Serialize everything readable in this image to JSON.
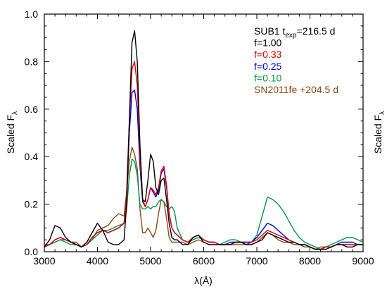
{
  "chart_data": {
    "type": "line",
    "xlabel": "λ(Å)",
    "ylabel": "Scaled F",
    "ylabel_sub": "λ",
    "xlim": [
      3000,
      9000
    ],
    "ylim": [
      0.0,
      1.0
    ],
    "xticks": [
      3000,
      4000,
      5000,
      6000,
      7000,
      8000,
      9000
    ],
    "yticks": [
      0.0,
      0.2,
      0.4,
      0.6,
      0.8,
      1.0
    ],
    "ytick_labels": [
      "0.0",
      "0.2",
      "0.4",
      "0.6",
      "0.8",
      "1.0"
    ],
    "legend": {
      "placement": "top-right",
      "header": {
        "main": "SUB1 t",
        "sub": "exp",
        "rest": "=216.5 d"
      }
    },
    "series": [
      {
        "name": "f=1.00",
        "color": "#000000",
        "x": [
          3000,
          3100,
          3200,
          3300,
          3400,
          3500,
          3600,
          3700,
          3800,
          3900,
          4000,
          4100,
          4200,
          4300,
          4400,
          4500,
          4550,
          4600,
          4650,
          4700,
          4750,
          4800,
          4850,
          4900,
          4950,
          5000,
          5050,
          5100,
          5150,
          5200,
          5250,
          5300,
          5350,
          5400,
          5450,
          5500,
          5600,
          5700,
          5800,
          5900,
          6000,
          6100,
          6200,
          6300,
          6400,
          6500,
          6600,
          6700,
          6800,
          6900,
          7000,
          7100,
          7200,
          7300,
          7400,
          7500,
          7600,
          7700,
          7800,
          7900,
          8000,
          8100,
          8200,
          8300,
          8400,
          8500,
          8600,
          8700,
          8800,
          8900,
          9000
        ],
        "y": [
          0.02,
          0.05,
          0.11,
          0.1,
          0.06,
          0.04,
          0.03,
          0.02,
          0.04,
          0.08,
          0.12,
          0.09,
          0.04,
          0.03,
          0.03,
          0.05,
          0.2,
          0.55,
          0.88,
          0.93,
          0.8,
          0.45,
          0.22,
          0.21,
          0.3,
          0.41,
          0.38,
          0.27,
          0.24,
          0.3,
          0.31,
          0.22,
          0.12,
          0.06,
          0.05,
          0.05,
          0.03,
          0.03,
          0.06,
          0.07,
          0.04,
          0.03,
          0.03,
          0.03,
          0.03,
          0.03,
          0.04,
          0.04,
          0.03,
          0.03,
          0.04,
          0.05,
          0.08,
          0.07,
          0.06,
          0.05,
          0.04,
          0.04,
          0.03,
          0.03,
          0.02,
          0.01,
          0.01,
          0.01,
          0.02,
          0.03,
          0.03,
          0.02,
          0.02,
          0.03,
          0.03
        ]
      },
      {
        "name": "f=0.33",
        "color": "#e00000",
        "x": [
          3000,
          3100,
          3200,
          3300,
          3400,
          3500,
          3600,
          3700,
          3800,
          3900,
          4000,
          4100,
          4200,
          4300,
          4400,
          4500,
          4550,
          4600,
          4650,
          4700,
          4750,
          4800,
          4850,
          4900,
          4950,
          5000,
          5050,
          5100,
          5150,
          5200,
          5250,
          5300,
          5350,
          5400,
          5450,
          5500,
          5600,
          5700,
          5800,
          5900,
          6000,
          6100,
          6200,
          6300,
          6400,
          6500,
          6600,
          6700,
          6800,
          6900,
          7000,
          7100,
          7200,
          7300,
          7400,
          7500,
          7600,
          7700,
          7800,
          7900,
          8000,
          8100,
          8200,
          8300,
          8400,
          8500,
          8600,
          8700,
          8800,
          8900,
          9000
        ],
        "y": [
          0.02,
          0.03,
          0.05,
          0.06,
          0.05,
          0.04,
          0.03,
          0.02,
          0.03,
          0.06,
          0.08,
          0.09,
          0.08,
          0.09,
          0.1,
          0.12,
          0.25,
          0.55,
          0.77,
          0.8,
          0.7,
          0.4,
          0.22,
          0.19,
          0.22,
          0.27,
          0.26,
          0.24,
          0.27,
          0.34,
          0.36,
          0.28,
          0.16,
          0.1,
          0.08,
          0.07,
          0.05,
          0.04,
          0.06,
          0.07,
          0.05,
          0.04,
          0.04,
          0.03,
          0.03,
          0.03,
          0.04,
          0.04,
          0.03,
          0.04,
          0.05,
          0.07,
          0.09,
          0.08,
          0.07,
          0.06,
          0.05,
          0.04,
          0.03,
          0.03,
          0.02,
          0.01,
          0.01,
          0.02,
          0.02,
          0.03,
          0.03,
          0.03,
          0.03,
          0.03,
          0.03
        ]
      },
      {
        "name": "f=0.25",
        "color": "#0000e0",
        "x": [
          3000,
          3100,
          3200,
          3300,
          3400,
          3500,
          3600,
          3700,
          3800,
          3900,
          4000,
          4100,
          4200,
          4300,
          4400,
          4500,
          4550,
          4600,
          4650,
          4700,
          4750,
          4800,
          4850,
          4900,
          4950,
          5000,
          5050,
          5100,
          5150,
          5200,
          5250,
          5300,
          5350,
          5400,
          5450,
          5500,
          5600,
          5700,
          5800,
          5900,
          6000,
          6100,
          6200,
          6300,
          6400,
          6500,
          6600,
          6700,
          6800,
          6900,
          7000,
          7100,
          7200,
          7300,
          7400,
          7500,
          7600,
          7700,
          7800,
          7900,
          8000,
          8100,
          8200,
          8300,
          8400,
          8500,
          8600,
          8700,
          8800,
          8900,
          9000
        ],
        "y": [
          0.02,
          0.03,
          0.05,
          0.06,
          0.05,
          0.04,
          0.03,
          0.02,
          0.03,
          0.06,
          0.08,
          0.09,
          0.08,
          0.09,
          0.1,
          0.12,
          0.24,
          0.5,
          0.67,
          0.68,
          0.6,
          0.36,
          0.21,
          0.19,
          0.22,
          0.27,
          0.25,
          0.23,
          0.26,
          0.33,
          0.35,
          0.27,
          0.16,
          0.1,
          0.08,
          0.07,
          0.05,
          0.04,
          0.06,
          0.07,
          0.05,
          0.04,
          0.04,
          0.03,
          0.03,
          0.04,
          0.04,
          0.04,
          0.04,
          0.04,
          0.06,
          0.09,
          0.12,
          0.11,
          0.09,
          0.07,
          0.05,
          0.04,
          0.03,
          0.03,
          0.02,
          0.01,
          0.01,
          0.02,
          0.02,
          0.03,
          0.04,
          0.04,
          0.04,
          0.03,
          0.03
        ]
      },
      {
        "name": "f=0.10",
        "color": "#009944",
        "x": [
          3000,
          3100,
          3200,
          3300,
          3400,
          3500,
          3600,
          3700,
          3800,
          3900,
          4000,
          4100,
          4200,
          4300,
          4400,
          4500,
          4550,
          4600,
          4650,
          4700,
          4750,
          4800,
          4850,
          4900,
          4950,
          5000,
          5050,
          5100,
          5150,
          5200,
          5250,
          5300,
          5350,
          5400,
          5450,
          5500,
          5600,
          5700,
          5800,
          5900,
          6000,
          6100,
          6200,
          6300,
          6400,
          6500,
          6600,
          6700,
          6800,
          6900,
          7000,
          7100,
          7200,
          7300,
          7400,
          7500,
          7600,
          7700,
          7800,
          7900,
          8000,
          8100,
          8200,
          8300,
          8400,
          8500,
          8600,
          8700,
          8800,
          8900,
          9000
        ],
        "y": [
          0.02,
          0.03,
          0.04,
          0.05,
          0.04,
          0.03,
          0.03,
          0.02,
          0.03,
          0.05,
          0.07,
          0.09,
          0.09,
          0.1,
          0.11,
          0.12,
          0.18,
          0.32,
          0.39,
          0.38,
          0.32,
          0.2,
          0.18,
          0.18,
          0.19,
          0.18,
          0.19,
          0.19,
          0.21,
          0.22,
          0.21,
          0.19,
          0.18,
          0.19,
          0.17,
          0.1,
          0.05,
          0.04,
          0.05,
          0.06,
          0.05,
          0.04,
          0.04,
          0.03,
          0.04,
          0.05,
          0.05,
          0.04,
          0.04,
          0.04,
          0.07,
          0.15,
          0.23,
          0.22,
          0.2,
          0.17,
          0.13,
          0.09,
          0.06,
          0.04,
          0.03,
          0.02,
          0.01,
          0.02,
          0.03,
          0.04,
          0.05,
          0.06,
          0.06,
          0.05,
          0.04
        ]
      },
      {
        "name": "SN2011fe +204.5 d",
        "color": "#8b4a14",
        "x": [
          3000,
          3100,
          3200,
          3300,
          3400,
          3500,
          3600,
          3700,
          3800,
          3900,
          4000,
          4100,
          4200,
          4300,
          4400,
          4500,
          4550,
          4600,
          4650,
          4700,
          4750,
          4800,
          4850,
          4900,
          4950,
          5000,
          5050,
          5100,
          5150,
          5200,
          5250,
          5300,
          5350,
          5400,
          5450,
          5500,
          5600,
          5700,
          5800,
          5900,
          6000,
          6100,
          6200,
          6300,
          6400,
          6500,
          6600,
          6700,
          6800,
          6900,
          7000,
          7100,
          7200,
          7300,
          7400,
          7500,
          7600,
          7700,
          7800,
          7900,
          8000,
          8100,
          8200,
          8300,
          8400,
          8500,
          8600,
          8700,
          8800,
          8900,
          9000
        ],
        "y": [
          0.03,
          0.03,
          0.04,
          0.05,
          0.05,
          0.04,
          0.04,
          0.02,
          0.03,
          0.05,
          0.09,
          0.1,
          0.11,
          0.14,
          0.16,
          0.15,
          0.25,
          0.38,
          0.44,
          0.41,
          0.35,
          0.18,
          0.08,
          0.08,
          0.1,
          0.08,
          0.06,
          0.09,
          0.16,
          0.22,
          0.21,
          0.14,
          0.06,
          0.04,
          0.04,
          0.04,
          0.04,
          0.03,
          0.04,
          0.05,
          0.04,
          0.03,
          0.03,
          0.03,
          0.03,
          0.03,
          0.03,
          0.03,
          0.03,
          0.03,
          0.04,
          0.06,
          0.08,
          0.07,
          0.05,
          0.04,
          0.04,
          0.03,
          0.03,
          0.02,
          0.02,
          0.01,
          0.02,
          0.02,
          0.02,
          0.03,
          0.03,
          0.03,
          0.03,
          0.03,
          0.03
        ]
      }
    ]
  }
}
